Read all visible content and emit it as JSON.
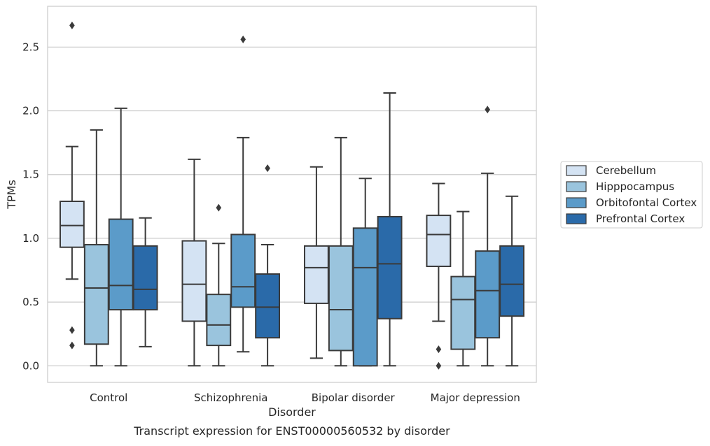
{
  "chart_data": {
    "type": "box",
    "xlabel": "Disorder",
    "ylabel": "TPMs",
    "caption": "Transcript expression for ENST00000560532 by disorder",
    "ylim": [
      -0.13,
      2.82
    ],
    "yticks": [
      0.0,
      0.5,
      1.0,
      1.5,
      2.0,
      2.5
    ],
    "ytick_labels": [
      "0.0",
      "0.5",
      "1.0",
      "1.5",
      "2.0",
      "2.5"
    ],
    "grid": "horizontal",
    "legend_position": "right",
    "categories": [
      "Control",
      "Schizophrenia",
      "Bipolar disorder",
      "Major depression"
    ],
    "series": [
      {
        "name": "Cerebellum",
        "color": "#d4e3f3",
        "boxes": [
          {
            "q1": 0.93,
            "median": 1.1,
            "q3": 1.29,
            "whisker_low": 0.68,
            "whisker_high": 1.72,
            "outliers": [
              2.67,
              0.28,
              0.16
            ]
          },
          {
            "q1": 0.35,
            "median": 0.64,
            "q3": 0.98,
            "whisker_low": 0.0,
            "whisker_high": 1.62,
            "outliers": []
          },
          {
            "q1": 0.49,
            "median": 0.77,
            "q3": 0.94,
            "whisker_low": 0.06,
            "whisker_high": 1.56,
            "outliers": []
          },
          {
            "q1": 0.78,
            "median": 1.03,
            "q3": 1.18,
            "whisker_low": 0.35,
            "whisker_high": 1.43,
            "outliers": [
              0.13,
              0.0
            ]
          }
        ]
      },
      {
        "name": "Hipppocampus",
        "color": "#9ac4dd",
        "boxes": [
          {
            "q1": 0.17,
            "median": 0.61,
            "q3": 0.95,
            "whisker_low": 0.0,
            "whisker_high": 1.85,
            "outliers": []
          },
          {
            "q1": 0.16,
            "median": 0.32,
            "q3": 0.56,
            "whisker_low": 0.0,
            "whisker_high": 0.96,
            "outliers": [
              1.24
            ]
          },
          {
            "q1": 0.12,
            "median": 0.44,
            "q3": 0.94,
            "whisker_low": 0.0,
            "whisker_high": 1.79,
            "outliers": []
          },
          {
            "q1": 0.13,
            "median": 0.52,
            "q3": 0.7,
            "whisker_low": 0.0,
            "whisker_high": 1.21,
            "outliers": []
          }
        ]
      },
      {
        "name": "Orbitofontal Cortex",
        "color": "#5b9bc9",
        "boxes": [
          {
            "q1": 0.44,
            "median": 0.63,
            "q3": 1.15,
            "whisker_low": 0.0,
            "whisker_high": 2.02,
            "outliers": []
          },
          {
            "q1": 0.46,
            "median": 0.62,
            "q3": 1.03,
            "whisker_low": 0.11,
            "whisker_high": 1.79,
            "outliers": [
              2.56
            ]
          },
          {
            "q1": 0.0,
            "median": 0.77,
            "q3": 1.08,
            "whisker_low": 0.0,
            "whisker_high": 1.47,
            "outliers": []
          },
          {
            "q1": 0.22,
            "median": 0.59,
            "q3": 0.9,
            "whisker_low": 0.0,
            "whisker_high": 1.51,
            "outliers": [
              2.01
            ]
          }
        ]
      },
      {
        "name": "Prefrontal Cortex",
        "color": "#2a6aa9",
        "boxes": [
          {
            "q1": 0.44,
            "median": 0.6,
            "q3": 0.94,
            "whisker_low": 0.15,
            "whisker_high": 1.16,
            "outliers": []
          },
          {
            "q1": 0.22,
            "median": 0.46,
            "q3": 0.72,
            "whisker_low": 0.0,
            "whisker_high": 0.95,
            "outliers": [
              1.55
            ]
          },
          {
            "q1": 0.37,
            "median": 0.8,
            "q3": 1.17,
            "whisker_low": 0.0,
            "whisker_high": 2.14,
            "outliers": []
          },
          {
            "q1": 0.39,
            "median": 0.64,
            "q3": 0.94,
            "whisker_low": 0.0,
            "whisker_high": 1.33,
            "outliers": []
          }
        ]
      }
    ]
  }
}
